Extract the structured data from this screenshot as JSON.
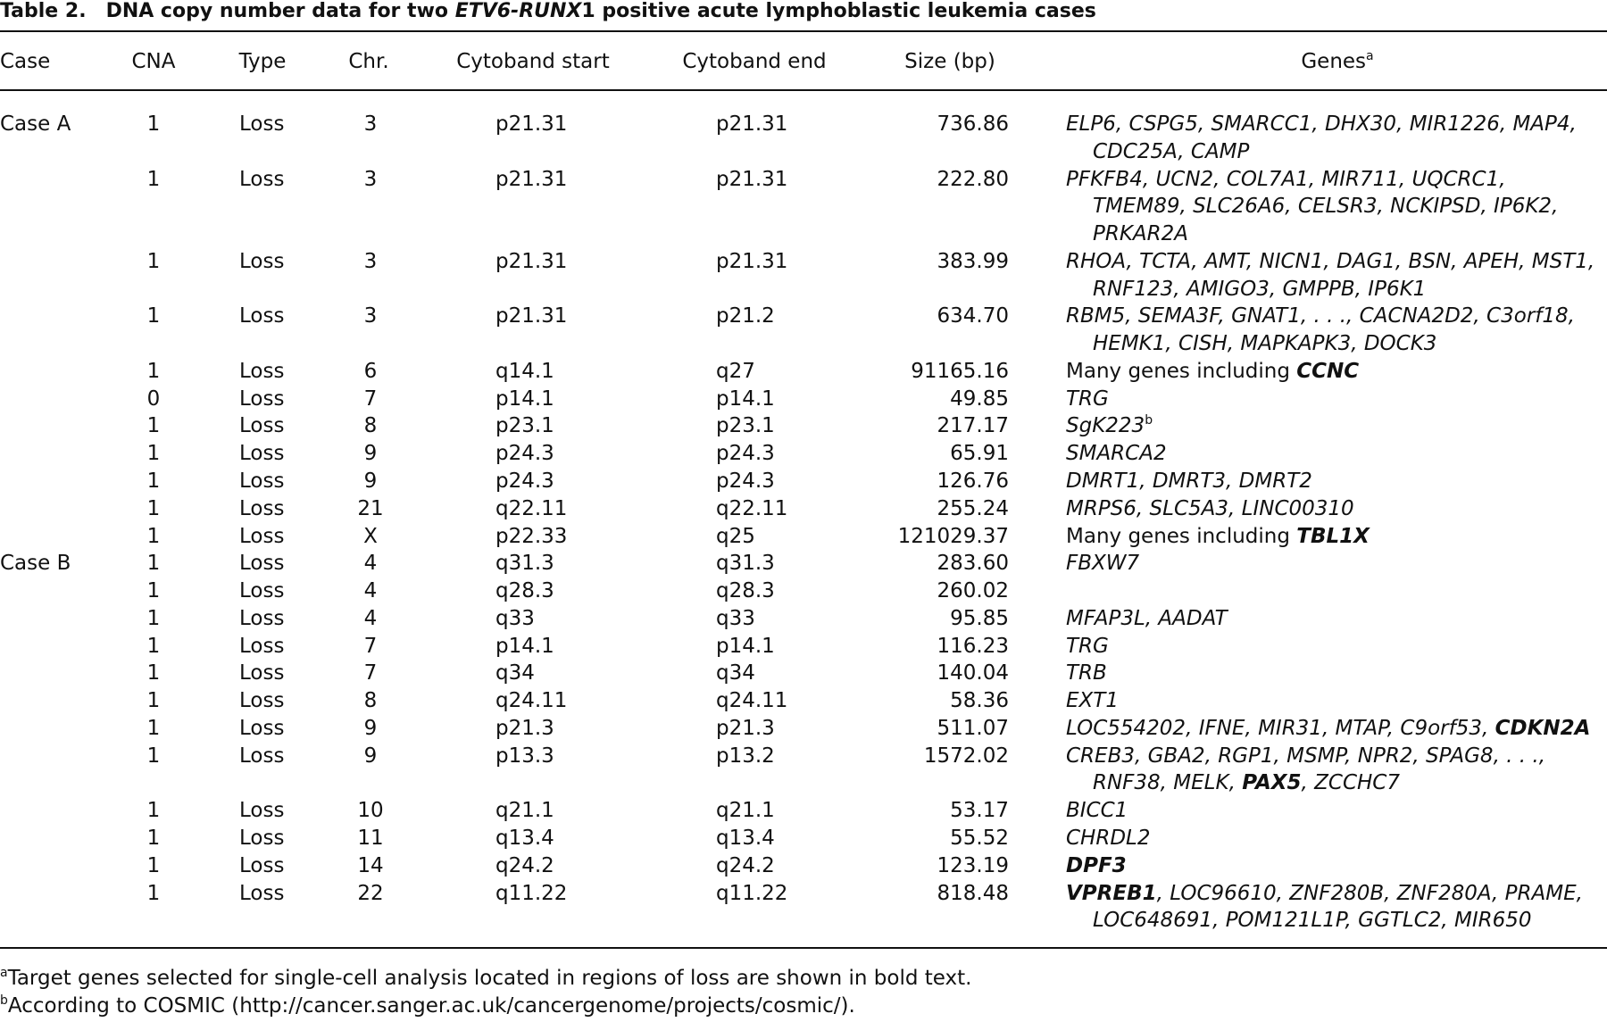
{
  "header": {
    "label": "Table 2.",
    "title": [
      "DNA copy number data for two ",
      {
        "italic": "ETV6-RUNX"
      },
      "1 positive acute lymphoblastic leukemia cases"
    ]
  },
  "table": {
    "columns": [
      "Case",
      "CNA",
      "Type",
      "Chr.",
      "Cytoband start",
      "Cytoband end",
      "Size (bp)",
      "Genes"
    ],
    "genes_note": "a",
    "rows": [
      {
        "case": "Case A",
        "cna": 1,
        "type": "Loss",
        "chr": 3,
        "start": "p21.31",
        "end": "p21.31",
        "size": "736.86",
        "genes": [
          [
            "ELP6, CSPG5, SMARCC1, DHX30, MIR1226, MAP4,"
          ],
          [
            "CDC25A, CAMP"
          ]
        ]
      },
      {
        "case": null,
        "cna": 1,
        "type": "Loss",
        "chr": 3,
        "start": "p21.31",
        "end": "p21.31",
        "size": "222.80",
        "genes": [
          [
            "PFKFB4, UCN2, COL7A1, MIR711, UQCRC1,"
          ],
          [
            "TMEM89, SLC26A6, CELSR3, NCKIPSD, IP6K2,"
          ],
          [
            "PRKAR2A"
          ]
        ]
      },
      {
        "case": null,
        "cna": 1,
        "type": "Loss",
        "chr": 3,
        "start": "p21.31",
        "end": "p21.31",
        "size": "383.99",
        "genes": [
          [
            "RHOA, TCTA, AMT, NICN1, DAG1, BSN, APEH, MST1,"
          ],
          [
            "RNF123, AMIGO3, GMPPB, IP6K1"
          ]
        ]
      },
      {
        "case": null,
        "cna": 1,
        "type": "Loss",
        "chr": 3,
        "start": "p21.31",
        "end": "p21.2",
        "size": "634.70",
        "genes": [
          [
            "RBM5, SEMA3F, GNAT1, . . ., CACNA2D2, C3orf18,"
          ],
          [
            "HEMK1, CISH, MAPKAPK3, DOCK3"
          ]
        ]
      },
      {
        "case": null,
        "cna": 1,
        "type": "Loss",
        "chr": 6,
        "start": "q14.1",
        "end": "q27",
        "size": "91165.16",
        "genes": [
          [
            {
              "roman": "Many genes including "
            },
            {
              "bold": "CCNC"
            }
          ]
        ]
      },
      {
        "case": null,
        "cna": 0,
        "type": "Loss",
        "chr": 7,
        "start": "p14.1",
        "end": "p14.1",
        "size": "49.85",
        "genes": [
          [
            "TRG"
          ]
        ]
      },
      {
        "case": null,
        "cna": 1,
        "type": "Loss",
        "chr": 8,
        "start": "p23.1",
        "end": "p23.1",
        "size": "217.17",
        "genes": [
          [
            "SgK223",
            {
              "sup": "b"
            }
          ]
        ]
      },
      {
        "case": null,
        "cna": 1,
        "type": "Loss",
        "chr": 9,
        "start": "p24.3",
        "end": "p24.3",
        "size": "65.91",
        "genes": [
          [
            "SMARCA2"
          ]
        ]
      },
      {
        "case": null,
        "cna": 1,
        "type": "Loss",
        "chr": 9,
        "start": "p24.3",
        "end": "p24.3",
        "size": "126.76",
        "genes": [
          [
            "DMRT1, DMRT3, DMRT2"
          ]
        ]
      },
      {
        "case": null,
        "cna": 1,
        "type": "Loss",
        "chr": 21,
        "start": "q22.11",
        "end": "q22.11",
        "size": "255.24",
        "genes": [
          [
            "MRPS6, SLC5A3, LINC00310"
          ]
        ]
      },
      {
        "case": null,
        "cna": 1,
        "type": "Loss",
        "chr": "X",
        "start": "p22.33",
        "end": "q25",
        "size": "121029.37",
        "genes": [
          [
            {
              "roman": "Many genes including "
            },
            {
              "bold": "TBL1X"
            }
          ]
        ]
      },
      {
        "case": "Case B",
        "cna": 1,
        "type": "Loss",
        "chr": 4,
        "start": "q31.3",
        "end": "q31.3",
        "size": "283.60",
        "genes": [
          [
            "FBXW7"
          ]
        ]
      },
      {
        "case": null,
        "cna": 1,
        "type": "Loss",
        "chr": 4,
        "start": "q28.3",
        "end": "q28.3",
        "size": "260.02",
        "genes": []
      },
      {
        "case": null,
        "cna": 1,
        "type": "Loss",
        "chr": 4,
        "start": "q33",
        "end": "q33",
        "size": "95.85",
        "genes": [
          [
            "MFAP3L, AADAT"
          ]
        ]
      },
      {
        "case": null,
        "cna": 1,
        "type": "Loss",
        "chr": 7,
        "start": "p14.1",
        "end": "p14.1",
        "size": "116.23",
        "genes": [
          [
            "TRG"
          ]
        ]
      },
      {
        "case": null,
        "cna": 1,
        "type": "Loss",
        "chr": 7,
        "start": "q34",
        "end": "q34",
        "size": "140.04",
        "genes": [
          [
            "TRB"
          ]
        ]
      },
      {
        "case": null,
        "cna": 1,
        "type": "Loss",
        "chr": 8,
        "start": "q24.11",
        "end": "q24.11",
        "size": "58.36",
        "genes": [
          [
            "EXT1"
          ]
        ]
      },
      {
        "case": null,
        "cna": 1,
        "type": "Loss",
        "chr": 9,
        "start": "p21.3",
        "end": "p21.3",
        "size": "511.07",
        "genes": [
          [
            "LOC554202, IFNE, MIR31, MTAP, C9orf53, ",
            {
              "bold": "CDKN2A"
            }
          ]
        ]
      },
      {
        "case": null,
        "cna": 1,
        "type": "Loss",
        "chr": 9,
        "start": "p13.3",
        "end": "p13.2",
        "size": "1572.02",
        "genes": [
          [
            "CREB3, GBA2, RGP1, MSMP, NPR2, SPAG8, . . .,"
          ],
          [
            "RNF38, MELK, ",
            {
              "bold": "PAX5"
            },
            ", ZCCHC7"
          ]
        ]
      },
      {
        "case": null,
        "cna": 1,
        "type": "Loss",
        "chr": 10,
        "start": "q21.1",
        "end": "q21.1",
        "size": "53.17",
        "genes": [
          [
            "BICC1"
          ]
        ]
      },
      {
        "case": null,
        "cna": 1,
        "type": "Loss",
        "chr": 11,
        "start": "q13.4",
        "end": "q13.4",
        "size": "55.52",
        "genes": [
          [
            "CHRDL2"
          ]
        ]
      },
      {
        "case": null,
        "cna": 1,
        "type": "Loss",
        "chr": 14,
        "start": "q24.2",
        "end": "q24.2",
        "size": "123.19",
        "genes": [
          [
            {
              "bold": "DPF3"
            }
          ]
        ]
      },
      {
        "case": null,
        "cna": 1,
        "type": "Loss",
        "chr": 22,
        "start": "q11.22",
        "end": "q11.22",
        "size": "818.48",
        "genes": [
          [
            {
              "bold": "VPREB1"
            },
            ", LOC96610, ZNF280B, ZNF280A, PRAME,"
          ],
          [
            "LOC648691, POM121L1P, GGTLC2, MIR650"
          ]
        ]
      }
    ]
  },
  "footnotes": [
    {
      "mark": "a",
      "text": "Target genes selected for single-cell analysis located in regions of loss are shown in bold text."
    },
    {
      "mark": "b",
      "text": "According to COSMIC (http://cancer.sanger.ac.uk/cancergenome/projects/cosmic/)."
    }
  ]
}
